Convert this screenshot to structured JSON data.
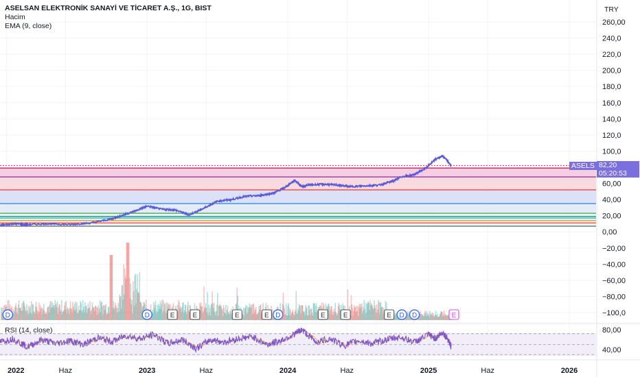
{
  "header": {
    "title": "ASELSAN ELEKTRONİK SANAYİ VE TİCARET A.Ş., 1G, BIST",
    "indicators": [
      "Hacim",
      "EMA (9, close)"
    ],
    "currency": "TRY"
  },
  "price_tag": {
    "symbol": "ASELS",
    "price": "82,20",
    "countdown": "05:20:53"
  },
  "rsi_label": "RSI (14, close)",
  "colors": {
    "price_line": "#5b5bd6",
    "ema_line": "#f2a33a",
    "volume_up": "#26a69a",
    "volume_down": "#ef5350",
    "rsi_line": "#7e57c2",
    "rsi_band": "#ede7f6",
    "accent_tag": "#7b6fe0"
  },
  "chart_data": {
    "type": "line",
    "title": "ASELSAN ELEKTRONİK SANAYİ VE TİCARET A.Ş., 1G, BIST",
    "xlabel": "",
    "ylabel": "",
    "x_ticks": [
      "2022",
      "Haz",
      "2023",
      "Haz",
      "2024",
      "Haz",
      "2025",
      "Haz",
      "2026"
    ],
    "x_tick_values": [
      2022.0,
      2022.42,
      2023.0,
      2023.42,
      2024.0,
      2024.42,
      2025.0,
      2025.42,
      2026.0
    ],
    "y_ticks": [
      "260,00",
      "240,0",
      "220,0",
      "200,0",
      "180,0",
      "160,0",
      "140,0",
      "120,0",
      "100,0",
      "80,00",
      "60,00",
      "40,00",
      "20,00",
      "0,00",
      "−20,00",
      "−40,00",
      "−60,00",
      "−80,00",
      "−100,0"
    ],
    "y_tick_values": [
      260,
      240,
      220,
      200,
      180,
      160,
      140,
      120,
      100,
      80,
      60,
      40,
      20,
      0,
      -20,
      -40,
      -60,
      -80,
      -100
    ],
    "ylim": [
      -110,
      270
    ],
    "grid": true,
    "series": [
      {
        "name": "ASELS",
        "x": [
          2021.95,
          2022.05,
          2022.15,
          2022.3,
          2022.45,
          2022.6,
          2022.75,
          2022.85,
          2022.95,
          2023.0,
          2023.1,
          2023.2,
          2023.3,
          2023.4,
          2023.5,
          2023.6,
          2023.7,
          2023.8,
          2023.9,
          2023.98,
          2024.05,
          2024.1,
          2024.15,
          2024.25,
          2024.35,
          2024.45,
          2024.55,
          2024.65,
          2024.75,
          2024.8,
          2024.9,
          2024.98,
          2025.05,
          2025.1,
          2025.13,
          2025.16
        ],
        "values": [
          8,
          10,
          9,
          10,
          9,
          11,
          16,
          22,
          28,
          32,
          28,
          27,
          21,
          29,
          38,
          40,
          44,
          45,
          48,
          55,
          64,
          56,
          58,
          59,
          58,
          56,
          57,
          58,
          63,
          68,
          71,
          79,
          90,
          94,
          89,
          82
        ]
      }
    ],
    "horizontal_levels": [
      {
        "value": 79,
        "color": "#d81b60"
      },
      {
        "value": 68,
        "color": "#8e24aa"
      },
      {
        "value": 52,
        "color": "#e53935"
      },
      {
        "value": 35,
        "color": "#1e88e5"
      },
      {
        "value": 23,
        "color": "#43a047"
      },
      {
        "value": 19,
        "color": "#00897b"
      },
      {
        "value": 17,
        "color": "#26c6da"
      },
      {
        "value": 14,
        "color": "#fb8c00"
      },
      {
        "value": 11,
        "color": "#f44336"
      },
      {
        "value": 7,
        "color": "#616161"
      }
    ],
    "zone_fills": [
      {
        "from": 68,
        "to": 79,
        "color": "#f3c6dc"
      },
      {
        "from": 52,
        "to": 68,
        "color": "#f8d3d9"
      },
      {
        "from": 35,
        "to": 52,
        "color": "#d6dcf6"
      },
      {
        "from": 23,
        "to": 35,
        "color": "#dfe8f8"
      },
      {
        "from": 7,
        "to": 23,
        "color": "#e6f2ee"
      }
    ],
    "event_markers": [
      {
        "x": 2022.01,
        "label": "D"
      },
      {
        "x": 2023.0,
        "label": "D"
      },
      {
        "x": 2023.18,
        "label": "E"
      },
      {
        "x": 2023.34,
        "label": "E"
      },
      {
        "x": 2023.64,
        "label": "E"
      },
      {
        "x": 2023.85,
        "label": "E"
      },
      {
        "x": 2023.93,
        "label": "D"
      },
      {
        "x": 2024.25,
        "label": "E"
      },
      {
        "x": 2024.41,
        "label": "E"
      },
      {
        "x": 2024.72,
        "label": "E"
      },
      {
        "x": 2024.81,
        "label": "D"
      },
      {
        "x": 2024.9,
        "label": "D"
      },
      {
        "x": 2025.18,
        "label": "E"
      }
    ],
    "rsi": {
      "y_ticks": [
        "80,00",
        "40,00"
      ],
      "y_tick_values": [
        80,
        40
      ],
      "ylim": [
        25,
        95
      ],
      "band": [
        30,
        70
      ],
      "x": [
        2021.95,
        2022.05,
        2022.15,
        2022.25,
        2022.35,
        2022.45,
        2022.55,
        2022.65,
        2022.75,
        2022.85,
        2022.95,
        2023.05,
        2023.15,
        2023.25,
        2023.35,
        2023.45,
        2023.55,
        2023.65,
        2023.75,
        2023.85,
        2023.95,
        2024.05,
        2024.1,
        2024.2,
        2024.3,
        2024.4,
        2024.5,
        2024.6,
        2024.7,
        2024.8,
        2024.9,
        2025.0,
        2025.05,
        2025.1,
        2025.14,
        2025.16
      ],
      "values": [
        55,
        62,
        45,
        60,
        52,
        58,
        50,
        64,
        56,
        68,
        62,
        70,
        52,
        60,
        42,
        60,
        55,
        62,
        66,
        50,
        58,
        72,
        80,
        55,
        62,
        48,
        58,
        52,
        60,
        65,
        55,
        70,
        62,
        75,
        60,
        46
      ]
    }
  }
}
